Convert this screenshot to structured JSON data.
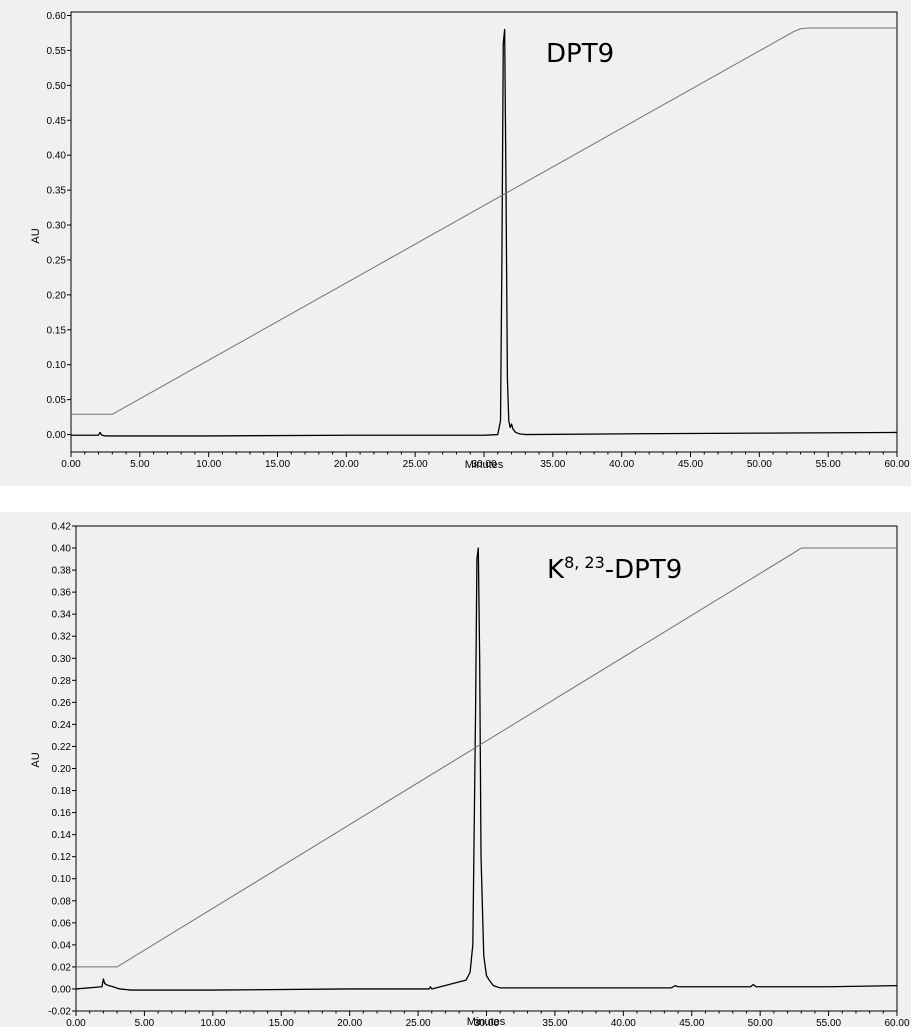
{
  "chart_data": [
    {
      "type": "line",
      "annotation": "DPT9",
      "xlabel": "Minutes",
      "ylabel": "AU",
      "xlim": [
        0,
        60
      ],
      "ylim": [
        -0.025,
        0.605
      ],
      "x_ticks": [
        "0.00",
        "5.00",
        "10.00",
        "15.00",
        "20.00",
        "25.00",
        "30.00",
        "35.00",
        "40.00",
        "45.00",
        "50.00",
        "55.00",
        "60.00"
      ],
      "y_ticks": [
        "0.00",
        "0.05",
        "0.10",
        "0.15",
        "0.20",
        "0.25",
        "0.30",
        "0.35",
        "0.40",
        "0.45",
        "0.50",
        "0.55",
        "0.60"
      ],
      "series": [
        {
          "x": [
            0,
            2.0,
            2.1,
            2.25,
            2.5,
            5,
            10,
            20,
            30,
            31.0,
            31.2,
            31.3,
            31.4,
            31.5,
            31.6,
            31.7,
            31.8,
            31.9,
            32.0,
            32.1,
            32.3,
            32.6,
            33,
            40,
            50,
            60
          ],
          "y": [
            -0.001,
            -0.001,
            0.003,
            -0.001,
            -0.002,
            -0.002,
            -0.002,
            -0.001,
            -0.001,
            0.0,
            0.02,
            0.25,
            0.56,
            0.58,
            0.35,
            0.08,
            0.02,
            0.01,
            0.015,
            0.008,
            0.003,
            0.001,
            0.0,
            0.001,
            0.002,
            0.003
          ]
        },
        {
          "x": [
            0,
            3.0,
            52.5,
            53.0,
            53.5,
            60
          ],
          "y": [
            0.029,
            0.029,
            0.577,
            0.581,
            0.582,
            0.582
          ]
        }
      ]
    },
    {
      "type": "line",
      "annotation_base": "K",
      "annotation_sup": "8, 23",
      "annotation_rest": "-DPT9",
      "xlabel": "Minutes",
      "ylabel": "AU",
      "xlim": [
        0,
        60
      ],
      "ylim": [
        -0.02,
        0.42
      ],
      "x_ticks": [
        "0.00",
        "5.00",
        "10.00",
        "15.00",
        "20.00",
        "25.00",
        "30.00",
        "35.00",
        "40.00",
        "45.00",
        "50.00",
        "55.00",
        "60.00"
      ],
      "y_ticks": [
        "-0.02",
        "0.00",
        "0.02",
        "0.04",
        "0.06",
        "0.08",
        "0.10",
        "0.12",
        "0.14",
        "0.16",
        "0.18",
        "0.20",
        "0.22",
        "0.24",
        "0.26",
        "0.28",
        "0.30",
        "0.32",
        "0.34",
        "0.36",
        "0.38",
        "0.40",
        "0.42"
      ],
      "series": [
        {
          "x": [
            0,
            1.9,
            2.0,
            2.1,
            2.2,
            2.4,
            2.7,
            3.2,
            4,
            10,
            20,
            25.8,
            25.9,
            26.0,
            28.5,
            28.8,
            29.0,
            29.2,
            29.3,
            29.4,
            29.5,
            29.6,
            29.8,
            30.0,
            30.2,
            30.5,
            31,
            43.5,
            43.8,
            44,
            49.3,
            49.5,
            49.7,
            55,
            60
          ],
          "y": [
            0.0,
            0.002,
            0.009,
            0.005,
            0.004,
            0.003,
            0.002,
            0.0,
            -0.001,
            -0.001,
            0.0,
            0.0,
            0.002,
            0.0,
            0.008,
            0.015,
            0.04,
            0.25,
            0.39,
            0.4,
            0.3,
            0.12,
            0.03,
            0.012,
            0.008,
            0.003,
            0.001,
            0.001,
            0.003,
            0.002,
            0.002,
            0.004,
            0.002,
            0.002,
            0.003
          ]
        },
        {
          "x": [
            0,
            3.0,
            52.5,
            53.0,
            53.5,
            60
          ],
          "y": [
            0.02,
            0.02,
            0.396,
            0.4,
            0.4,
            0.4
          ]
        }
      ]
    }
  ]
}
